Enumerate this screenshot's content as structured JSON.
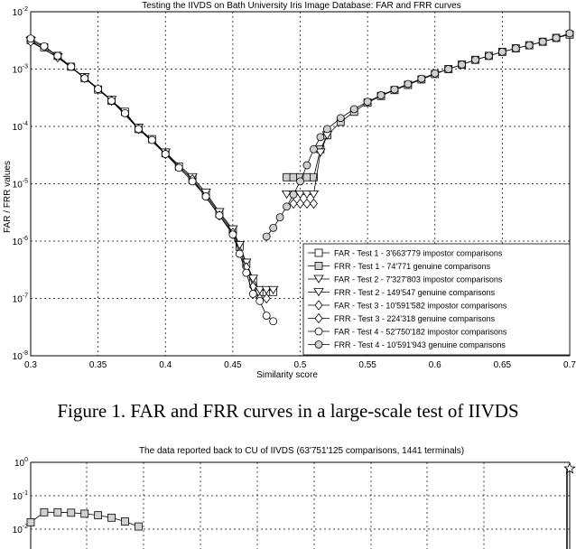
{
  "caption": "Figure 1.    FAR and FRR curves in a large-scale test of IIVDS",
  "chart_data": [
    {
      "type": "line",
      "title": "Testing the IIVDS on Bath University Iris Image Database: FAR and FRR curves",
      "xlabel": "Similarity score",
      "ylabel": "FAR / FRR values",
      "xlim": [
        0.3,
        0.7
      ],
      "ylim_exponent": [
        -8,
        -2
      ],
      "yscale": "log",
      "grid": true,
      "legend_position": "bottom-right",
      "x_ticks": [
        "0.3",
        "0.35",
        "0.4",
        "0.45",
        "0.5",
        "0.55",
        "0.6",
        "0.65",
        "0.7"
      ],
      "y_ticks": [
        {
          "base": "10",
          "exp": "-2"
        },
        {
          "base": "10",
          "exp": "-3"
        },
        {
          "base": "10",
          "exp": "-4"
        },
        {
          "base": "10",
          "exp": "-5"
        },
        {
          "base": "10",
          "exp": "-6"
        },
        {
          "base": "10",
          "exp": "-7"
        },
        {
          "base": "10",
          "exp": "-8"
        }
      ],
      "series": [
        {
          "name": "FAR - Test 1 - 3'663'779 impostor comparisons",
          "marker": "square",
          "color": "#ffffff",
          "x": [
            0.3,
            0.31,
            0.32,
            0.33,
            0.34,
            0.35,
            0.36,
            0.37,
            0.38,
            0.39,
            0.4,
            0.41,
            0.42,
            0.43,
            0.44,
            0.45,
            0.455,
            0.46,
            0.465,
            0.47,
            0.475,
            0.48
          ],
          "y": [
            0.0032,
            0.0024,
            0.0017,
            0.0011,
            0.0007,
            0.00044,
            0.00028,
            0.00018,
            9e-05,
            6e-05,
            3.4e-05,
            2e-05,
            1.2e-05,
            6.5e-06,
            3e-06,
            1.5e-06,
            8e-07,
            4e-07,
            2e-07,
            1.3e-07,
            1.3e-07,
            1.3e-07
          ]
        },
        {
          "name": "FRR - Test 1 - 74'771 genuine comparisons",
          "marker": "square",
          "color": "#d0d0d0",
          "x": [
            0.49,
            0.495,
            0.5,
            0.505,
            0.51,
            0.515,
            0.52,
            0.53,
            0.54,
            0.55,
            0.56,
            0.57,
            0.58,
            0.59,
            0.6,
            0.61,
            0.62,
            0.63,
            0.64,
            0.65,
            0.66,
            0.67,
            0.68,
            0.69,
            0.7
          ],
          "y": [
            1.3e-05,
            1.3e-05,
            1.3e-05,
            1.3e-05,
            1.3e-05,
            4e-05,
            7e-05,
            0.00012,
            0.00018,
            0.00026,
            0.00034,
            0.00043,
            0.00053,
            0.00066,
            0.00082,
            0.001,
            0.0012,
            0.00145,
            0.0017,
            0.002,
            0.0023,
            0.0026,
            0.003,
            0.0035,
            0.004
          ]
        },
        {
          "name": "FAR - Test 2 - 7'327'803 impostor comparisons",
          "marker": "triangle-down",
          "color": "#ffffff",
          "x": [
            0.3,
            0.32,
            0.34,
            0.36,
            0.38,
            0.4,
            0.42,
            0.43,
            0.44,
            0.45,
            0.455,
            0.46,
            0.465,
            0.47,
            0.475,
            0.48
          ],
          "y": [
            0.0031,
            0.0016,
            0.00072,
            0.00029,
            9.5e-05,
            3.5e-05,
            1.3e-05,
            7e-06,
            3.2e-06,
            1.6e-06,
            8.5e-07,
            4.2e-07,
            2.2e-07,
            1.4e-07,
            1.4e-07,
            1.4e-07
          ]
        },
        {
          "name": "FRR - Test 2 - 149'547 genuine comparisons",
          "marker": "triangle-down",
          "color": "#ffffff",
          "x": [
            0.49,
            0.495,
            0.5,
            0.505,
            0.51,
            0.515,
            0.52
          ],
          "y": [
            6.5e-06,
            6.5e-06,
            6.5e-06,
            6.5e-06,
            6.5e-06,
            3.5e-05,
            7e-05
          ]
        },
        {
          "name": "FAR - Test 3 - 10'591'582 impostor comparisons",
          "marker": "diamond",
          "color": "#ffffff",
          "x": [
            0.3,
            0.32,
            0.34,
            0.36,
            0.38,
            0.4,
            0.42,
            0.44,
            0.45,
            0.46,
            0.465,
            0.47,
            0.475
          ],
          "y": [
            0.003,
            0.0016,
            0.0007,
            0.00028,
            9e-05,
            3.3e-05,
            1.2e-05,
            2.8e-06,
            1.4e-06,
            3.5e-07,
            1.6e-07,
            1e-07,
            1e-07
          ]
        },
        {
          "name": "FRR - Test 3 - 224'318 genuine comparisons",
          "marker": "diamond",
          "color": "#ffffff",
          "x": [
            0.495,
            0.5,
            0.505,
            0.51
          ],
          "y": [
            4.5e-06,
            4.5e-06,
            4.5e-06,
            4.5e-06
          ]
        },
        {
          "name": "FAR - Test 4 - 52'750'182 impostor comparisons",
          "marker": "circle",
          "color": "#ffffff",
          "x": [
            0.3,
            0.31,
            0.32,
            0.33,
            0.34,
            0.35,
            0.36,
            0.37,
            0.38,
            0.39,
            0.4,
            0.41,
            0.42,
            0.43,
            0.44,
            0.45,
            0.455,
            0.46,
            0.465,
            0.47,
            0.475,
            0.48
          ],
          "y": [
            0.0034,
            0.0025,
            0.0017,
            0.0011,
            0.00069,
            0.00045,
            0.00028,
            0.00017,
            9e-05,
            5.8e-05,
            3.3e-05,
            1.9e-05,
            1.1e-05,
            6e-06,
            2.8e-06,
            1.3e-06,
            6e-07,
            2.8e-07,
            1.2e-07,
            9e-08,
            5e-08,
            4e-08
          ]
        },
        {
          "name": "FRR - Test 4 - 10'591'943 genuine comparisons",
          "marker": "circle",
          "color": "#d0d0d0",
          "x": [
            0.475,
            0.48,
            0.485,
            0.49,
            0.495,
            0.5,
            0.505,
            0.51,
            0.515,
            0.52,
            0.53,
            0.54,
            0.55,
            0.56,
            0.57,
            0.58,
            0.59,
            0.6,
            0.61,
            0.62,
            0.63,
            0.64,
            0.65,
            0.66,
            0.67,
            0.68,
            0.69,
            0.7
          ],
          "y": [
            1.2e-06,
            1.7e-06,
            2.6e-06,
            4e-06,
            6.5e-06,
            1.1e-05,
            2.1e-05,
            4e-05,
            6.5e-05,
            9e-05,
            0.00014,
            0.0002,
            0.00027,
            0.00035,
            0.00044,
            0.00055,
            0.00068,
            0.00084,
            0.001,
            0.0012,
            0.00145,
            0.0017,
            0.002,
            0.0023,
            0.0026,
            0.003,
            0.0035,
            0.0042
          ]
        }
      ]
    },
    {
      "type": "line",
      "title": "The data reported back to CU of IIVDS (63'751'125 comparisons, 1441 terminals)",
      "yscale": "log",
      "grid": true,
      "y_ticks": [
        {
          "base": "10",
          "exp": "0"
        },
        {
          "base": "10",
          "exp": "-1"
        },
        {
          "base": "10",
          "exp": "-2"
        }
      ],
      "series": [
        {
          "name": "",
          "marker": "square",
          "color": "#d0d0d0",
          "x": [
            0.3,
            0.31,
            0.32,
            0.33,
            0.34,
            0.35,
            0.36,
            0.37,
            0.38
          ],
          "y": [
            0.016,
            0.032,
            0.032,
            0.031,
            0.029,
            0.026,
            0.022,
            0.017,
            0.012
          ]
        },
        {
          "name": "",
          "marker": "star",
          "color": "#ffffff",
          "x": [
            0.7
          ],
          "y": [
            0.65
          ]
        }
      ]
    }
  ]
}
